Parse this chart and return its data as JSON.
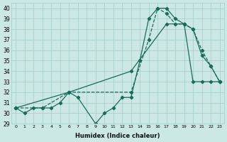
{
  "xlabel": "Humidex (Indice chaleur)",
  "background_color": "#cce8e4",
  "grid_color": "#aacfcb",
  "line_color": "#1a6b5a",
  "xlim": [
    -0.5,
    23.5
  ],
  "ylim": [
    29,
    40.5
  ],
  "yticks": [
    29,
    30,
    31,
    32,
    33,
    34,
    35,
    36,
    37,
    38,
    39,
    40
  ],
  "series": [
    {
      "x": [
        0,
        1,
        2,
        3,
        4,
        5,
        6,
        7,
        9,
        10,
        11,
        12,
        13,
        14,
        15,
        16,
        17,
        18,
        19,
        20,
        21,
        22,
        23
      ],
      "y": [
        30.5,
        30.0,
        30.5,
        30.5,
        30.5,
        31.0,
        32.0,
        31.5,
        29.0,
        30.0,
        30.5,
        31.5,
        31.5,
        35.0,
        39.0,
        40.0,
        40.0,
        39.0,
        38.5,
        38.0,
        35.5,
        34.5,
        33.0
      ]
    },
    {
      "x": [
        0,
        6,
        13,
        17,
        19,
        20,
        21,
        22,
        23
      ],
      "y": [
        30.5,
        32.0,
        34.0,
        38.5,
        38.5,
        33.0,
        33.0,
        33.0,
        33.0
      ]
    },
    {
      "x": [
        0,
        3,
        6,
        13,
        15,
        16,
        17,
        18,
        19,
        20,
        21,
        22,
        23
      ],
      "y": [
        30.5,
        30.5,
        32.0,
        32.0,
        37.0,
        40.0,
        39.5,
        38.5,
        38.5,
        38.0,
        36.0,
        34.5,
        33.0
      ]
    }
  ]
}
